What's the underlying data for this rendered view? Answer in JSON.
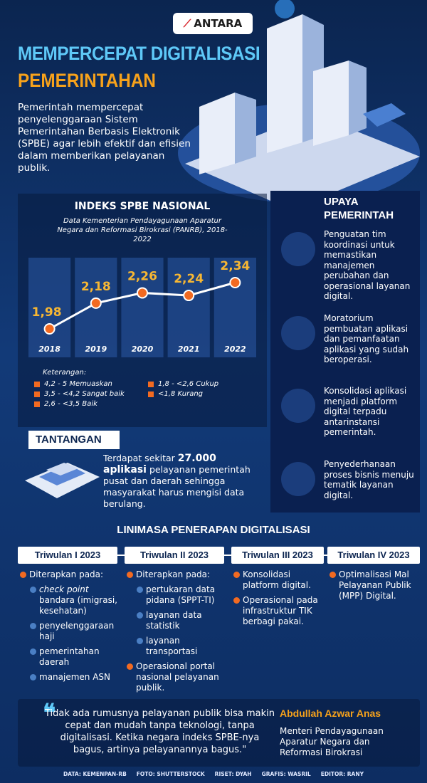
{
  "header": {
    "logo": "ANTARA",
    "title_line1": "MEMPERCEPAT DIGITALISASI",
    "title_line2": "PEMERINTAHAN",
    "intro": "Pemerintah mempercepat penyelenggaraan Sistem Pemerintahan Berbasis Elektronik (SPBE) agar lebih efektif dan efisien dalam memberikan pelayanan publik."
  },
  "chart_data": {
    "type": "line",
    "title": "INDEKS SPBE NASIONAL",
    "subtitle": "Data Kementerian Pendayagunaan Aparatur Negara dan Reformasi Birokrasi (PANRB), 2018-2022",
    "categories": [
      "2018",
      "2019",
      "2020",
      "2021",
      "2022"
    ],
    "values": [
      1.98,
      2.18,
      2.26,
      2.24,
      2.34
    ],
    "value_labels": [
      "1,98",
      "2,18",
      "2,26",
      "2,24",
      "2,34"
    ],
    "color": "#f26a21",
    "legend_title": "Keterangan:",
    "legend": [
      "4,2 - 5 Memuaskan",
      "1,8 - <2,6 Cukup",
      "3,5 - <4,2 Sangat baik",
      "<1,8 Kurang",
      "2,6 - <3,5 Baik"
    ]
  },
  "upaya": {
    "title": "UPAYA PEMERINTAH",
    "items": [
      "Penguatan tim koordinasi untuk memastikan manajemen perubahan dan operasional layanan digital.",
      "Moratorium pembuatan aplikasi dan pemanfaatan aplikasi yang sudah beroperasi.",
      "Konsolidasi aplikasi menjadi platform digital terpadu antarinstansi pemerintah.",
      "Penyederhanaan proses bisnis menuju tematik layanan digital."
    ]
  },
  "tantangan": {
    "title": "TANTANGAN",
    "text_before": "Terdapat sekitar",
    "highlight": "27.000 aplikasi",
    "text_after": "pelayanan pemerintah pusat dan daerah sehingga masyarakat harus mengisi data berulang."
  },
  "timeline": {
    "title": "LINIMASA PENERAPAN DIGITALISASI",
    "columns": [
      {
        "heading": "Triwulan I 2023",
        "items": [
          {
            "text": "Diterapkan pada:",
            "sub": [
              {
                "italic": "check point",
                "text": "bandara (imigrasi, kesehatan)"
              },
              "penyelenggaraan haji",
              "pemerintahan daerah",
              "manajemen ASN"
            ]
          }
        ]
      },
      {
        "heading": "Triwulan II 2023",
        "items": [
          {
            "text": "Diterapkan pada:",
            "sub": [
              "pertukaran data pidana (SPPT-TI)",
              "layanan data statistik",
              "layanan transportasi"
            ]
          },
          {
            "text": "Operasional portal nasional pelayanan publik."
          }
        ]
      },
      {
        "heading": "Triwulan III 2023",
        "items": [
          {
            "text": "Konsolidasi platform digital."
          },
          {
            "text": "Operasional pada infrastruktur TIK berbagi pakai."
          }
        ]
      },
      {
        "heading": "Triwulan IV 2023",
        "items": [
          {
            "text": "Optimalisasi Mal Pelayanan Publik (MPP) Digital."
          }
        ]
      }
    ]
  },
  "quote": {
    "text": "Tidak ada rumusnya pelayanan publik bisa makin cepat dan mudah tanpa teknologi, tanpa digitalisasi. Ketika negara indeks SPBE-nya bagus, artinya pelayanannya bagus.\"",
    "author": "Abdullah Azwar Anas",
    "role": "Menteri Pendayagunaan Aparatur Negara dan Reformasi Birokrasi"
  },
  "footer": [
    "DATA: KEMENPAN-RB",
    "FOTO: SHUTTERSTOCK",
    "RISET: DYAH",
    "GRAFIS: WASRIL",
    "EDITOR: RANY"
  ]
}
